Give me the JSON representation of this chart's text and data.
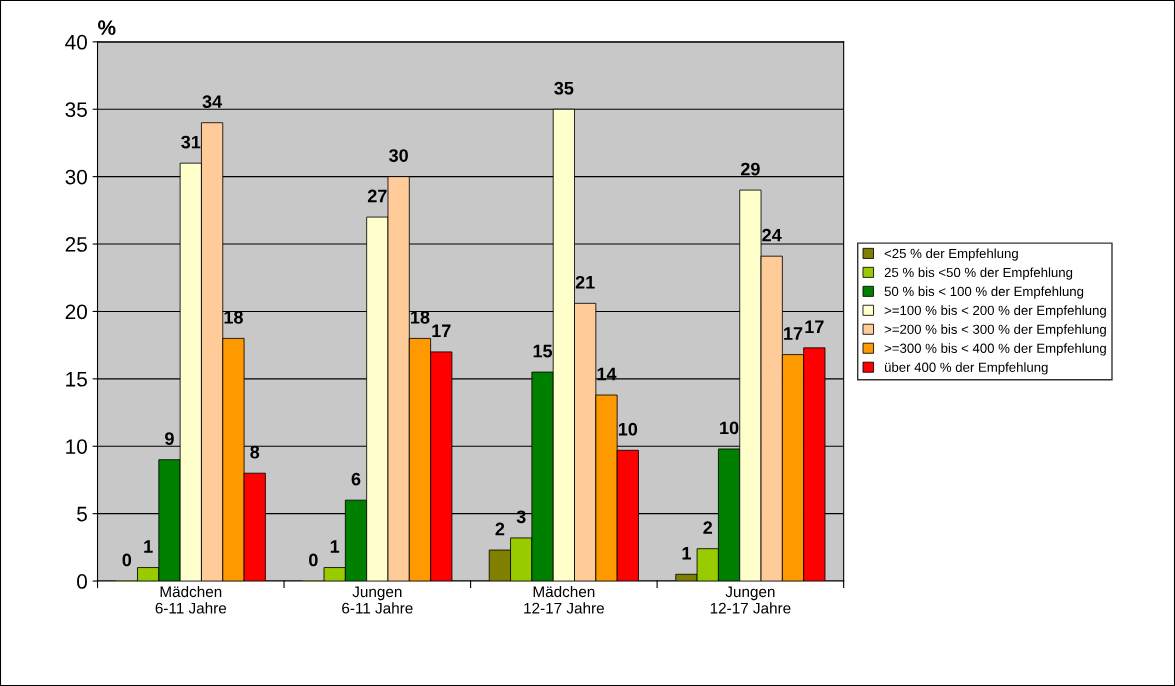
{
  "chart_data": {
    "type": "bar",
    "ylabel": "%",
    "categories": [
      "Mädchen\n6-11 Jahre",
      "Jungen\n6-11 Jahre",
      "Mädchen\n12-17 Jahre",
      "Jungen\n12-17 Jahre"
    ],
    "series": [
      {
        "name": "<25 % der Empfehlung",
        "color": "#808000",
        "values": [
          0,
          0,
          2.3,
          0.5
        ],
        "value_labels": [
          "0",
          "0",
          "2",
          "1"
        ]
      },
      {
        "name": "25 % bis <50 % der Empfehlung",
        "color": "#99cc00",
        "values": [
          1.0,
          1.0,
          3.2,
          2.4
        ],
        "value_labels": [
          "1",
          "1",
          "3",
          "2"
        ]
      },
      {
        "name": "50 % bis < 100 % der Empfehlung",
        "color": "#008000",
        "values": [
          9.0,
          6.0,
          15.5,
          9.8
        ],
        "value_labels": [
          "9",
          "6",
          "15",
          "10"
        ]
      },
      {
        "name": ">=100 % bis < 200 % der Empfehlung",
        "color": "#ffffcc",
        "values": [
          31.0,
          27.0,
          35.0,
          29.0
        ],
        "value_labels": [
          "31",
          "27",
          "35",
          "29"
        ]
      },
      {
        "name": ">=200 % bis < 300 % der Empfehlung",
        "color": "#ffcc99",
        "values": [
          34.0,
          30.0,
          20.6,
          24.1
        ],
        "value_labels": [
          "34",
          "30",
          "21",
          "24"
        ]
      },
      {
        "name": ">=300 % bis < 400 % der Empfehlung",
        "color": "#ff9900",
        "values": [
          18.0,
          18.0,
          13.8,
          16.8
        ],
        "value_labels": [
          "18",
          "18",
          "14",
          "17"
        ]
      },
      {
        "name": "über 400 % der Empfehlung",
        "color": "#ff0000",
        "values": [
          8.0,
          17.0,
          9.7,
          17.3
        ],
        "value_labels": [
          "8",
          "17",
          "10",
          "17"
        ]
      }
    ],
    "ylim": [
      0,
      40
    ],
    "yticks": [
      0,
      5,
      10,
      15,
      20,
      25,
      30,
      35,
      40
    ],
    "grid": "y",
    "legend": "right"
  }
}
